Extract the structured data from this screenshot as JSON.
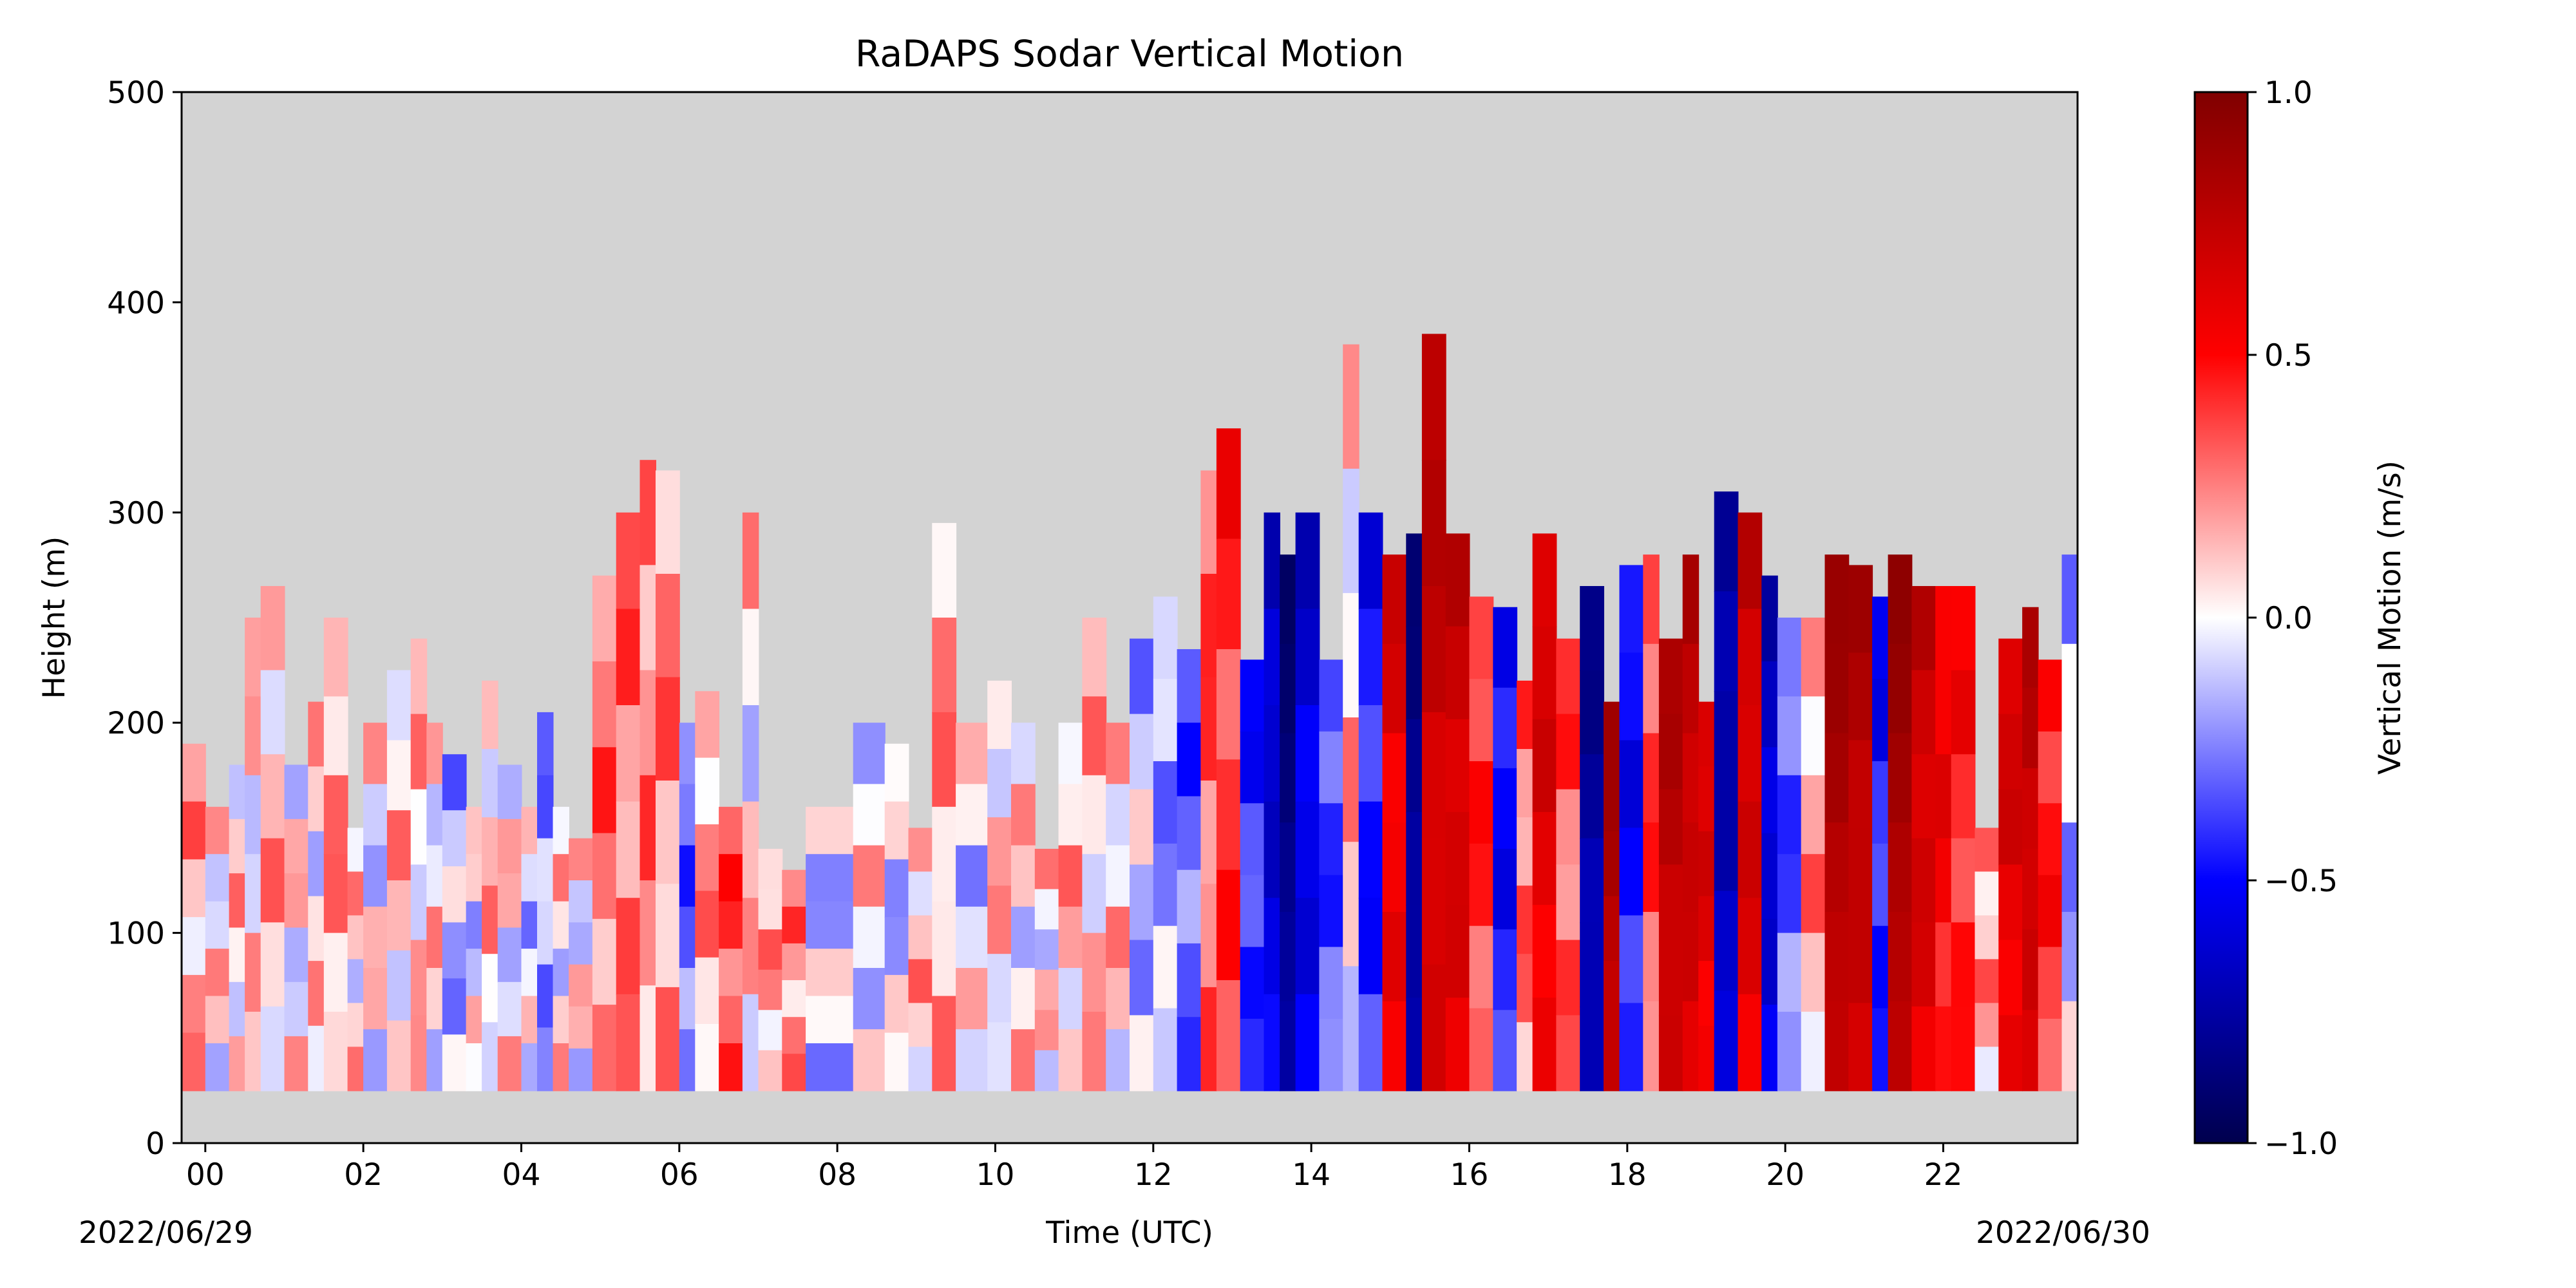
{
  "chart_data": {
    "type": "heatmap",
    "title": "RaDAPS Sodar Vertical Motion",
    "xlabel": "Time (UTC)",
    "ylabel": "Height (m)",
    "x_ticks": [
      "00",
      "02",
      "04",
      "06",
      "08",
      "10",
      "12",
      "14",
      "16",
      "18",
      "20",
      "22"
    ],
    "x_tick_hours": [
      0,
      2,
      4,
      6,
      8,
      10,
      12,
      14,
      16,
      18,
      20,
      22
    ],
    "xlim_hours": [
      -0.3,
      23.7
    ],
    "start_date": "2022/06/29",
    "end_date": "2022/06/30",
    "y_ticks": [
      0,
      100,
      200,
      300,
      400,
      500
    ],
    "ylim": [
      0,
      500
    ],
    "colorbar": {
      "label": "Vertical Motion (m/s)",
      "range": [
        -1.0,
        1.0
      ],
      "ticks": [
        "1.0",
        "0.5",
        "0.0",
        "−0.5",
        "−1.0"
      ],
      "tick_values": [
        1.0,
        0.5,
        0.0,
        -0.5,
        -1.0
      ],
      "colormap": "seismic"
    },
    "background_color": "#d3d3d3",
    "data_floor_height": 25,
    "profile_columns": [
      {
        "t": -0.3,
        "top": 190,
        "w": 0.18
      },
      {
        "t": 0.0,
        "top": 160,
        "w": 0.06
      },
      {
        "t": 0.3,
        "top": 180,
        "w": 0.1
      },
      {
        "t": 0.5,
        "top": 250,
        "w": 0.05
      },
      {
        "t": 0.7,
        "top": 265,
        "w": 0.15
      },
      {
        "t": 1.0,
        "top": 180,
        "w": 0.03
      },
      {
        "t": 1.3,
        "top": 210,
        "w": 0.05
      },
      {
        "t": 1.5,
        "top": 250,
        "w": 0.22
      },
      {
        "t": 1.8,
        "top": 150,
        "w": 0.08
      },
      {
        "t": 2.0,
        "top": 200,
        "w": 0.0
      },
      {
        "t": 2.3,
        "top": 225,
        "w": 0.12
      },
      {
        "t": 2.6,
        "top": 240,
        "w": 0.1
      },
      {
        "t": 2.8,
        "top": 200,
        "w": 0.06
      },
      {
        "t": 3.0,
        "top": 185,
        "w": -0.15
      },
      {
        "t": 3.3,
        "top": 160,
        "w": -0.05
      },
      {
        "t": 3.5,
        "top": 220,
        "w": 0.12
      },
      {
        "t": 3.7,
        "top": 180,
        "w": 0.03
      },
      {
        "t": 4.0,
        "top": 160,
        "w": -0.08
      },
      {
        "t": 4.2,
        "top": 205,
        "w": -0.22
      },
      {
        "t": 4.4,
        "top": 160,
        "w": 0.05
      },
      {
        "t": 4.6,
        "top": 145,
        "w": 0.02
      },
      {
        "t": 4.9,
        "top": 270,
        "w": 0.32
      },
      {
        "t": 5.2,
        "top": 300,
        "w": 0.3
      },
      {
        "t": 5.5,
        "top": 325,
        "w": 0.28
      },
      {
        "t": 5.7,
        "top": 320,
        "w": 0.25
      },
      {
        "t": 6.0,
        "top": 200,
        "w": -0.35
      },
      {
        "t": 6.2,
        "top": 215,
        "w": 0.2
      },
      {
        "t": 6.5,
        "top": 160,
        "w": 0.4
      },
      {
        "t": 6.8,
        "top": 300,
        "w": 0.05
      },
      {
        "t": 7.0,
        "top": 140,
        "w": 0.2
      },
      {
        "t": 7.3,
        "top": 130,
        "w": 0.25
      },
      {
        "t": 7.6,
        "top": 160,
        "w": -0.1
      },
      {
        "t": 8.2,
        "top": 200,
        "w": 0.02
      },
      {
        "t": 8.6,
        "top": 190,
        "w": -0.1
      },
      {
        "t": 8.9,
        "top": 150,
        "w": 0.15
      },
      {
        "t": 9.2,
        "top": 295,
        "w": 0.2
      },
      {
        "t": 9.5,
        "top": 200,
        "w": -0.05
      },
      {
        "t": 9.9,
        "top": 220,
        "w": 0.1
      },
      {
        "t": 10.2,
        "top": 200,
        "w": 0.05
      },
      {
        "t": 10.5,
        "top": 140,
        "w": 0.05
      },
      {
        "t": 10.8,
        "top": 200,
        "w": 0.15
      },
      {
        "t": 11.1,
        "top": 250,
        "w": 0.12
      },
      {
        "t": 11.4,
        "top": 200,
        "w": 0.1
      },
      {
        "t": 11.7,
        "top": 240,
        "w": -0.12
      },
      {
        "t": 12.0,
        "top": 260,
        "w": -0.2
      },
      {
        "t": 12.3,
        "top": 235,
        "w": -0.35
      },
      {
        "t": 12.6,
        "top": 320,
        "w": 0.35
      },
      {
        "t": 12.8,
        "top": 340,
        "w": 0.45
      },
      {
        "t": 13.1,
        "top": 230,
        "w": -0.45
      },
      {
        "t": 13.4,
        "top": 300,
        "w": -0.7
      },
      {
        "t": 13.6,
        "top": 280,
        "w": -0.95
      },
      {
        "t": 13.8,
        "top": 300,
        "w": -0.65
      },
      {
        "t": 14.1,
        "top": 230,
        "w": -0.4
      },
      {
        "t": 14.4,
        "top": 380,
        "w": 0.1
      },
      {
        "t": 14.6,
        "top": 300,
        "w": -0.5
      },
      {
        "t": 14.9,
        "top": 280,
        "w": 0.65
      },
      {
        "t": 15.2,
        "top": 290,
        "w": -0.9
      },
      {
        "t": 15.4,
        "top": 385,
        "w": 0.8
      },
      {
        "t": 15.7,
        "top": 290,
        "w": 0.75
      },
      {
        "t": 16.0,
        "top": 260,
        "w": 0.45
      },
      {
        "t": 16.3,
        "top": 255,
        "w": -0.55
      },
      {
        "t": 16.6,
        "top": 220,
        "w": 0.3
      },
      {
        "t": 16.8,
        "top": 290,
        "w": 0.7
      },
      {
        "t": 17.1,
        "top": 240,
        "w": 0.35
      },
      {
        "t": 17.4,
        "top": 265,
        "w": -0.85
      },
      {
        "t": 17.7,
        "top": 210,
        "w": 0.9
      },
      {
        "t": 17.9,
        "top": 275,
        "w": -0.55
      },
      {
        "t": 18.2,
        "top": 280,
        "w": 0.4
      },
      {
        "t": 18.4,
        "top": 240,
        "w": 0.85
      },
      {
        "t": 18.7,
        "top": 280,
        "w": 0.8
      },
      {
        "t": 18.9,
        "top": 210,
        "w": 0.7
      },
      {
        "t": 19.1,
        "top": 310,
        "w": -0.8
      },
      {
        "t": 19.4,
        "top": 300,
        "w": 0.75
      },
      {
        "t": 19.7,
        "top": 270,
        "w": -0.7
      },
      {
        "t": 19.9,
        "top": 250,
        "w": -0.35
      },
      {
        "t": 20.2,
        "top": 250,
        "w": 0.2
      },
      {
        "t": 20.5,
        "top": 280,
        "w": 0.92
      },
      {
        "t": 20.8,
        "top": 275,
        "w": 0.85
      },
      {
        "t": 21.1,
        "top": 260,
        "w": -0.5
      },
      {
        "t": 21.3,
        "top": 280,
        "w": 0.95
      },
      {
        "t": 21.6,
        "top": 265,
        "w": 0.75
      },
      {
        "t": 21.9,
        "top": 265,
        "w": 0.6
      },
      {
        "t": 22.1,
        "top": 265,
        "w": 0.5
      },
      {
        "t": 22.4,
        "top": 150,
        "w": 0.2
      },
      {
        "t": 22.7,
        "top": 240,
        "w": 0.7
      },
      {
        "t": 23.0,
        "top": 255,
        "w": 0.8
      },
      {
        "t": 23.2,
        "top": 230,
        "w": 0.5
      },
      {
        "t": 23.5,
        "top": 280,
        "w": -0.15
      }
    ]
  }
}
